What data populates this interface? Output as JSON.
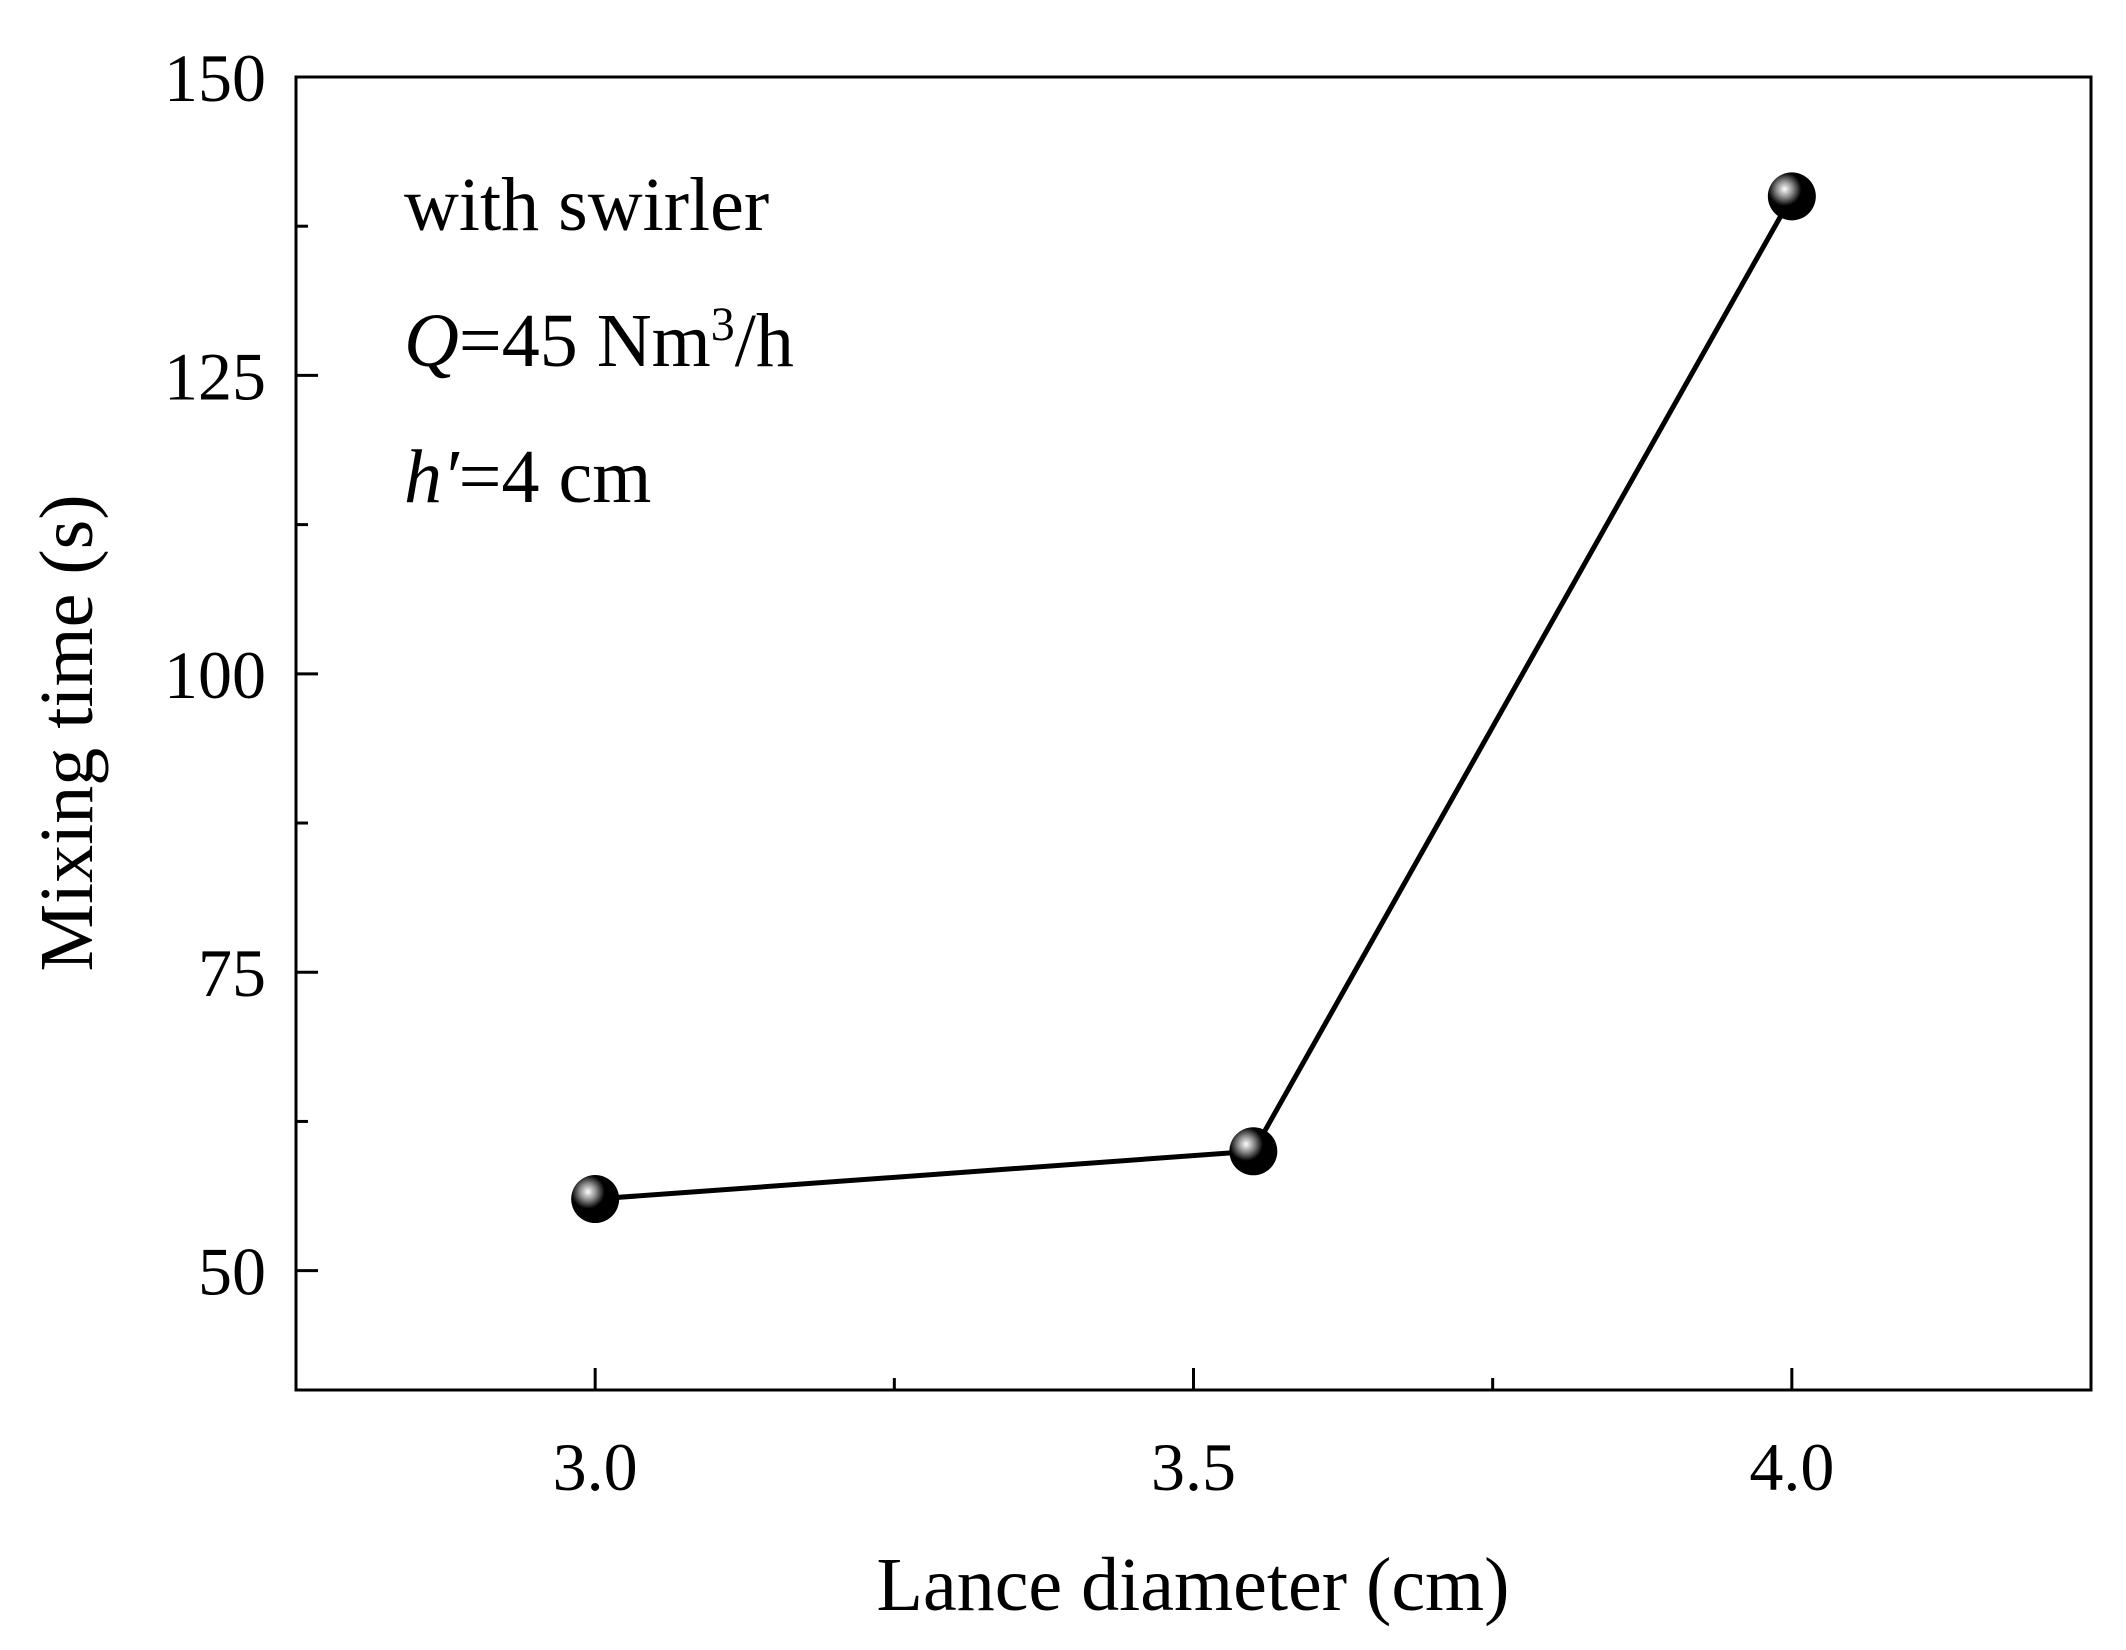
{
  "chart_data": {
    "type": "line",
    "x": [
      3.0,
      3.55,
      4.0
    ],
    "series": [
      {
        "color": "#000000",
        "values": [
          56,
          60,
          140
        ]
      }
    ],
    "xlabel": "Lance diameter (cm)",
    "ylabel": "Mixing time (s)",
    "xlim": [
      2.75,
      4.25
    ],
    "xticks": [
      {
        "value": 3,
        "label": "3.0"
      },
      {
        "value": 3.5,
        "label": "3.5"
      },
      {
        "value": 4,
        "label": "4.0"
      }
    ],
    "xminorticks": [
      3.25,
      3.75
    ],
    "ylim": [
      40,
      150
    ],
    "yticks": [
      50,
      75,
      100,
      125,
      150
    ],
    "yminorticks": [
      62.5,
      87.5,
      112.5,
      137.5
    ],
    "annotations": [
      [
        {
          "text": "with swirler"
        }
      ],
      [
        {
          "text": "Q",
          "italic": true
        },
        {
          "text": "=45 Nm"
        },
        {
          "text": "3",
          "sup": true
        },
        {
          "text": "/h"
        }
      ],
      [
        {
          "text": "h′",
          "italic": true
        },
        {
          "text": "=4 cm"
        }
      ]
    ]
  }
}
